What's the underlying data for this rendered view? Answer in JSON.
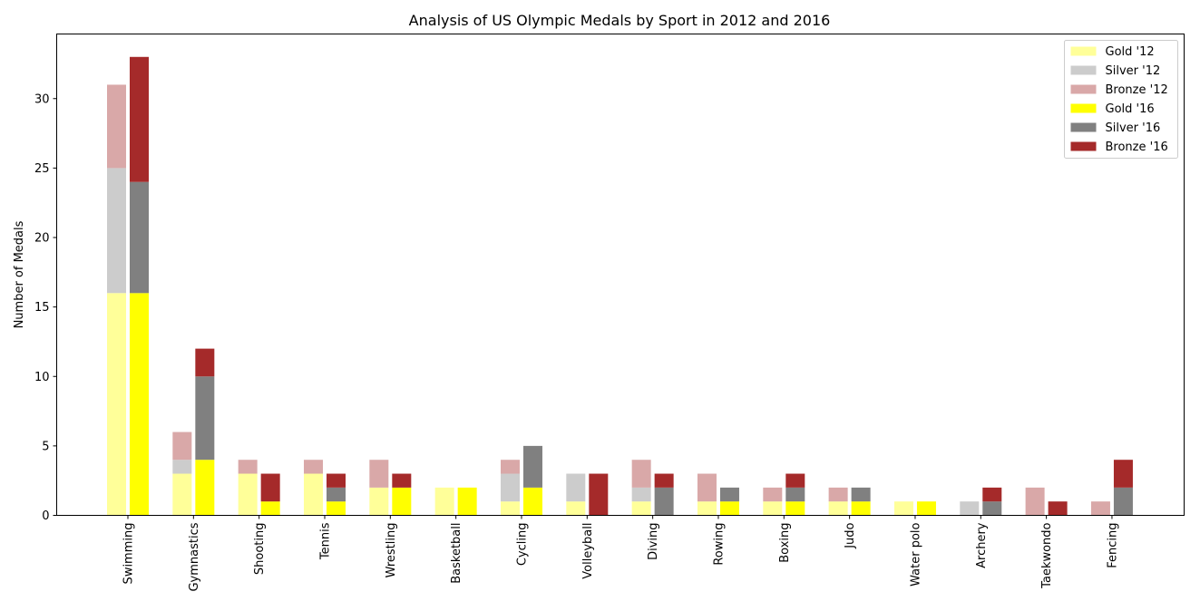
{
  "chart_data": {
    "type": "bar",
    "title": "Analysis of US Olympic Medals by Sport in 2012 and 2016",
    "xlabel": "",
    "ylabel": "Number of Medals",
    "ylim": [
      0,
      34.65
    ],
    "yticks": [
      0,
      5,
      10,
      15,
      20,
      25,
      30
    ],
    "grid": false,
    "legend_position": "top-right",
    "categories": [
      "Swimming",
      "Gymnastics",
      "Shooting",
      "Tennis",
      "Wrestling",
      "Basketball",
      "Cycling",
      "Volleyball",
      "Diving",
      "Rowing",
      "Boxing",
      "Judo",
      "Water polo",
      "Archery",
      "Taekwondo",
      "Fencing"
    ],
    "series": [
      {
        "name": "Gold '12",
        "year": "2012",
        "color": "#ffff99",
        "values": [
          16,
          3,
          3,
          3,
          2,
          2,
          1,
          1,
          1,
          1,
          1,
          1,
          1,
          0,
          0,
          0
        ]
      },
      {
        "name": "Silver '12",
        "year": "2012",
        "color": "#cccccc",
        "values": [
          9,
          1,
          0,
          0,
          0,
          0,
          2,
          2,
          1,
          0,
          0,
          0,
          0,
          1,
          0,
          0
        ]
      },
      {
        "name": "Bronze '12",
        "year": "2012",
        "color": "#d9a8a8",
        "values": [
          6,
          2,
          1,
          1,
          2,
          0,
          1,
          0,
          2,
          2,
          1,
          1,
          0,
          0,
          2,
          1
        ]
      },
      {
        "name": "Gold '16",
        "year": "2016",
        "color": "#ffff00",
        "values": [
          16,
          4,
          1,
          1,
          2,
          2,
          2,
          0,
          0,
          1,
          1,
          1,
          1,
          0,
          0,
          0
        ]
      },
      {
        "name": "Silver '16",
        "year": "2016",
        "color": "#808080",
        "values": [
          8,
          6,
          0,
          1,
          0,
          0,
          3,
          0,
          2,
          1,
          1,
          1,
          0,
          1,
          0,
          2
        ]
      },
      {
        "name": "Bronze '16",
        "year": "2016",
        "color": "#a52a2a",
        "values": [
          9,
          2,
          2,
          1,
          1,
          0,
          0,
          3,
          1,
          0,
          1,
          0,
          0,
          1,
          1,
          2
        ]
      }
    ]
  }
}
